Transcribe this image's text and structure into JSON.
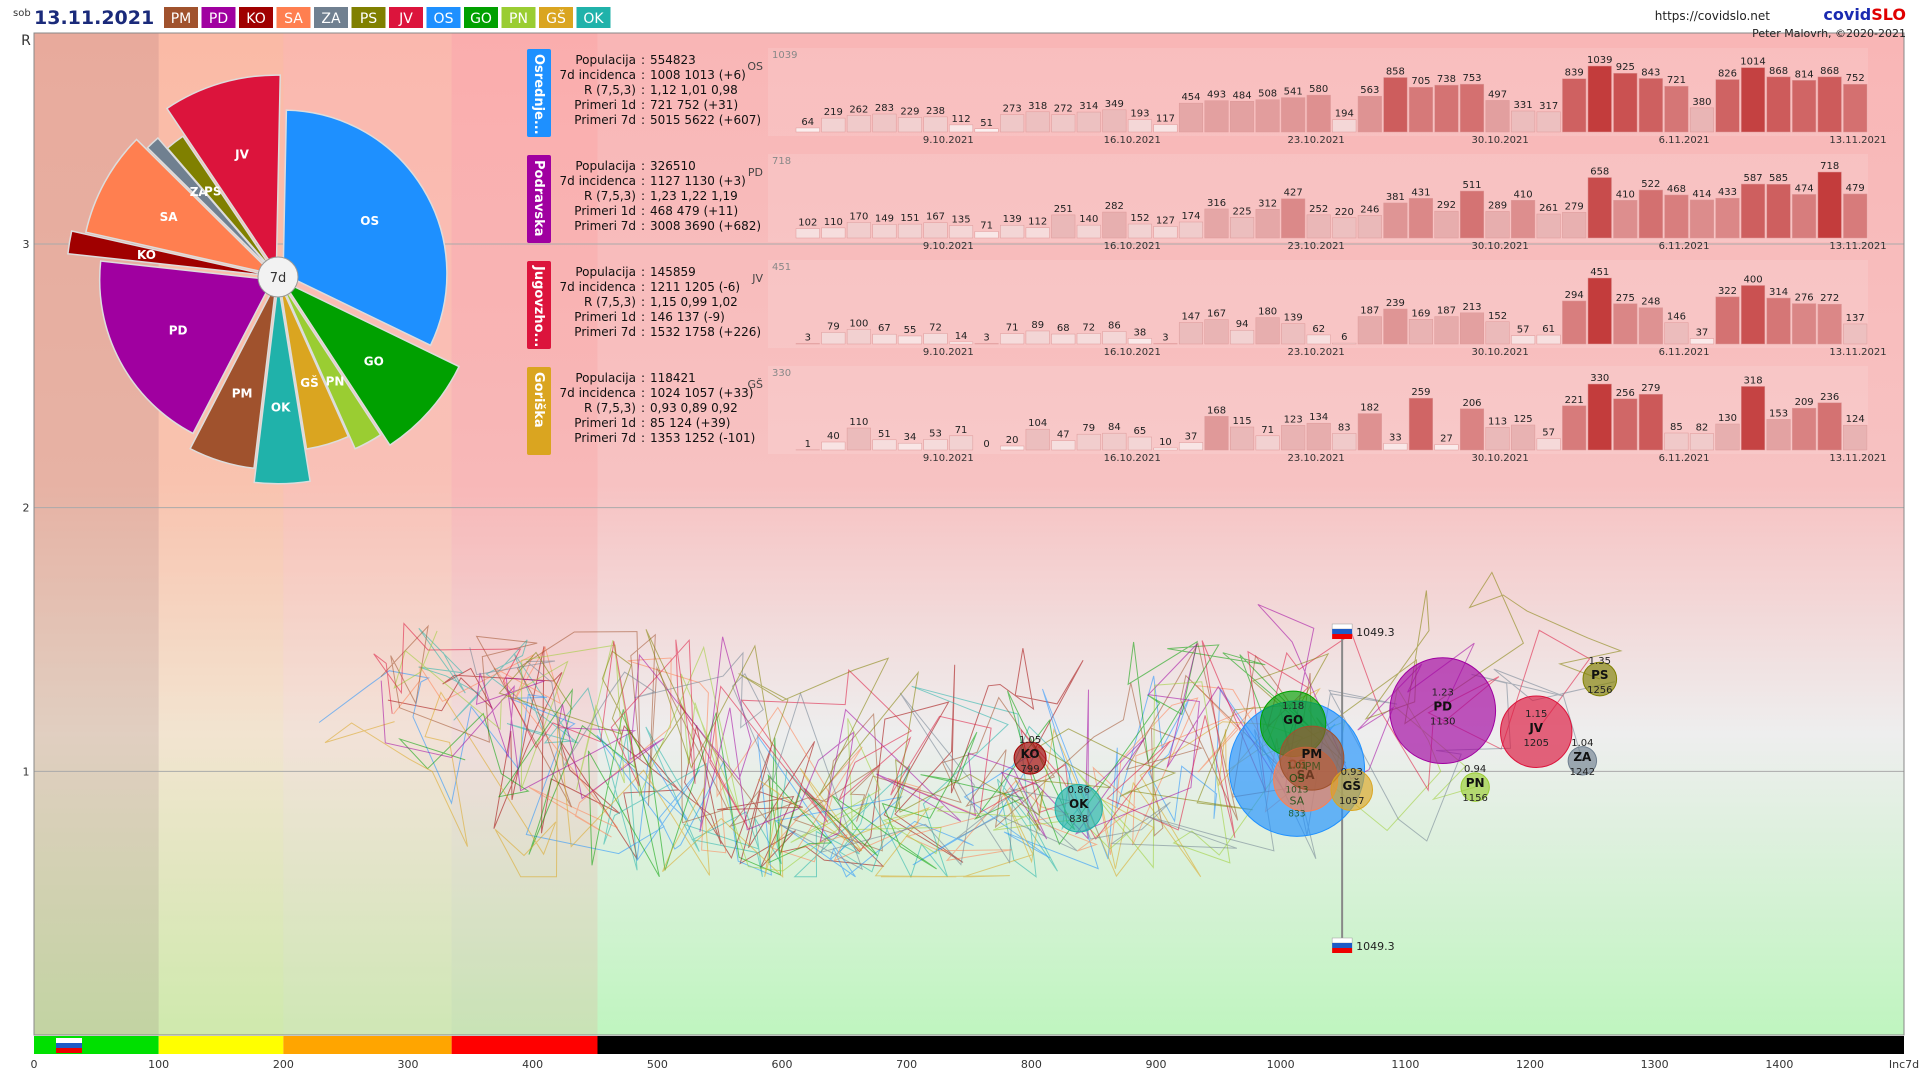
{
  "header": {
    "day": "sob",
    "date": "13.11.2021",
    "url": "https://covidslo.net",
    "brand_prefix": "covid",
    "brand_suffix": "SLO",
    "author": "Peter Malovrh, ©2020-2021",
    "legend": [
      {
        "code": "PM",
        "color": "#a0522d"
      },
      {
        "code": "PD",
        "color": "#a000a0"
      },
      {
        "code": "KO",
        "color": "#a00000"
      },
      {
        "code": "SA",
        "color": "#ff7f50"
      },
      {
        "code": "ZA",
        "color": "#708090"
      },
      {
        "code": "PS",
        "color": "#808000"
      },
      {
        "code": "JV",
        "color": "#dc143c"
      },
      {
        "code": "OS",
        "color": "#1e90ff"
      },
      {
        "code": "GO",
        "color": "#00a000"
      },
      {
        "code": "PN",
        "color": "#9acd32"
      },
      {
        "code": "GŠ",
        "color": "#daa520"
      },
      {
        "code": "OK",
        "color": "#20b2aa"
      }
    ]
  },
  "chart_data": [
    {
      "type": "scatter",
      "description_role": "bubble chart",
      "xlabel": "Inc7d",
      "ylabel": "R",
      "xlim": [
        0,
        1500
      ],
      "ylim": [
        0,
        3.8
      ],
      "x_ticks": [
        "0",
        "100",
        "200",
        "300",
        "400",
        "500",
        "600",
        "700",
        "800",
        "900",
        "1000",
        "1100",
        "1200",
        "1300",
        "1400",
        "Inc7d"
      ],
      "y_ticks": [
        "1",
        "2",
        "3"
      ],
      "national_marker": {
        "label": "1049.3",
        "x": 1049.3
      },
      "risk_bands": [
        {
          "from": 0,
          "to": 100,
          "color": "#00e000"
        },
        {
          "from": 100,
          "to": 200,
          "color": "#ffff00"
        },
        {
          "from": 200,
          "to": 335,
          "color": "#ffa500"
        },
        {
          "from": 335,
          "to": 452,
          "color": "#ff0000"
        },
        {
          "from": 452,
          "to": 1500,
          "color": "#000000"
        }
      ],
      "bubbles": [
        {
          "code": "KO",
          "r": "1.05",
          "inc": "799",
          "x": 799,
          "y": 1.05,
          "pop": 0.25
        },
        {
          "code": "OK",
          "r": "0.86",
          "inc": "838",
          "x": 838,
          "y": 0.86,
          "pop": 0.6
        },
        {
          "code": "OS",
          "r": "",
          "inc": "",
          "x": 1013,
          "y": 1.01,
          "pop": 5.5
        },
        {
          "code": "SA",
          "r": "",
          "inc": "",
          "x": 1020,
          "y": 0.97,
          "pop": 1.15
        },
        {
          "code": "PM",
          "r": "",
          "inc": "",
          "x": 1025,
          "y": 1.05,
          "pop": 1.15
        },
        {
          "code": "GO",
          "r": "1.18",
          "inc": "",
          "x": 1010,
          "y": 1.18,
          "pop": 1.2
        },
        {
          "code": "GŠ",
          "r": "0.93",
          "inc": "1057",
          "x": 1057,
          "y": 0.93,
          "pop": 0.45
        },
        {
          "code": "PD",
          "r": "1.23",
          "inc": "1130",
          "x": 1130,
          "y": 1.23,
          "pop": 3.3
        },
        {
          "code": "PN",
          "r": "0.94",
          "inc": "1156",
          "x": 1156,
          "y": 0.94,
          "pop": 0.19
        },
        {
          "code": "JV",
          "r": "1.15",
          "inc": "1205",
          "x": 1205,
          "y": 1.15,
          "pop": 1.45
        },
        {
          "code": "ZA",
          "r": "1.04",
          "inc": "1242",
          "x": 1242,
          "y": 1.04,
          "pop": 0.19
        },
        {
          "code": "PS",
          "r": "1.35",
          "inc": "1256",
          "x": 1256,
          "y": 1.35,
          "pop": 0.28
        }
      ],
      "bubble_overlap_labels": [
        "1.01",
        "OS",
        "1013",
        "SA",
        "PM",
        "833"
      ]
    },
    {
      "type": "pie",
      "center_label": "7d",
      "slices": [
        {
          "code": "OS",
          "value": 5015
        },
        {
          "code": "GO",
          "value": 1353
        },
        {
          "code": "PN",
          "value": 400
        },
        {
          "code": "GŠ",
          "value": 650
        },
        {
          "code": "OK",
          "value": 700
        },
        {
          "code": "PM",
          "value": 900
        },
        {
          "code": "PD",
          "value": 3008
        },
        {
          "code": "KO",
          "value": 280
        },
        {
          "code": "SA",
          "value": 1400
        },
        {
          "code": "ZA",
          "value": 200
        },
        {
          "code": "PS",
          "value": 300
        },
        {
          "code": "JV",
          "value": 1532
        }
      ]
    },
    {
      "type": "bar",
      "panels": [
        {
          "code": "OS",
          "name": "Osrednje...",
          "color": "#1e90ff",
          "max_label": "1039",
          "stats": [
            [
              "Populacija",
              "554823"
            ],
            [
              "7d incidenca",
              "1008 1013 (+6)"
            ],
            [
              "R (7,5,3)",
              "1,12 1,01 0,98"
            ],
            [
              "Primeri 1d",
              "721 752 (+31)"
            ],
            [
              "Primeri 7d",
              "5015 5622 (+607)"
            ]
          ],
          "values": [
            64,
            219,
            262,
            283,
            229,
            238,
            112,
            51,
            273,
            318,
            272,
            314,
            349,
            193,
            117,
            454,
            493,
            484,
            508,
            541,
            580,
            194,
            563,
            858,
            705,
            738,
            753,
            497,
            331,
            317,
            839,
            1039,
            925,
            843,
            721,
            380,
            826,
            1014,
            868,
            814,
            868,
            752
          ]
        },
        {
          "code": "PD",
          "name": "Podravska",
          "color": "#a000a0",
          "max_label": "718",
          "stats": [
            [
              "Populacija",
              "326510"
            ],
            [
              "7d incidenca",
              "1127 1130 (+3)"
            ],
            [
              "R (7,5,3)",
              "1,23 1,22 1,19"
            ],
            [
              "Primeri 1d",
              "468 479 (+11)"
            ],
            [
              "Primeri 7d",
              "3008 3690 (+682)"
            ]
          ],
          "values": [
            102,
            110,
            170,
            149,
            151,
            167,
            135,
            71,
            139,
            112,
            251,
            140,
            282,
            152,
            127,
            174,
            316,
            225,
            312,
            427,
            252,
            220,
            246,
            381,
            431,
            292,
            511,
            289,
            410,
            261,
            279,
            658,
            410,
            522,
            468,
            414,
            433,
            587,
            585,
            474,
            718,
            479
          ]
        },
        {
          "code": "JV",
          "name": "Jugovzho...",
          "color": "#dc143c",
          "max_label": "451",
          "stats": [
            [
              "Populacija",
              "145859"
            ],
            [
              "7d incidenca",
              "1211 1205 (-6)"
            ],
            [
              "R (7,5,3)",
              "1,15 0,99 1,02"
            ],
            [
              "Primeri 1d",
              "146 137 (-9)"
            ],
            [
              "Primeri 7d",
              "1532 1758 (+226)"
            ]
          ],
          "values": [
            3,
            79,
            100,
            67,
            55,
            72,
            14,
            3,
            71,
            89,
            68,
            72,
            86,
            38,
            3,
            147,
            167,
            94,
            180,
            139,
            62,
            6,
            187,
            239,
            169,
            187,
            213,
            152,
            57,
            61,
            294,
            451,
            275,
            248,
            146,
            37,
            322,
            400,
            314,
            276,
            272,
            137
          ]
        },
        {
          "code": "GŠ",
          "name": "Goriška",
          "color": "#daa520",
          "max_label": "330",
          "stats": [
            [
              "Populacija",
              "118421"
            ],
            [
              "7d incidenca",
              "1024 1057 (+33)"
            ],
            [
              "R (7,5,3)",
              "0,93 0,89 0,92"
            ],
            [
              "Primeri 1d",
              "85 124 (+39)"
            ],
            [
              "Primeri 7d",
              "1353 1252 (-101)"
            ]
          ],
          "values": [
            1,
            40,
            110,
            51,
            34,
            53,
            71,
            0,
            20,
            104,
            47,
            79,
            84,
            65,
            10,
            37,
            168,
            115,
            71,
            123,
            134,
            83,
            182,
            33,
            259,
            27,
            206,
            113,
            125,
            57,
            221,
            330,
            256,
            279,
            85,
            82,
            130,
            318,
            153,
            209,
            236,
            124
          ]
        }
      ],
      "date_ticks": [
        "9.10.2021",
        "16.10.2021",
        "23.10.2021",
        "30.10.2021",
        "6.11.2021",
        "13.11.2021"
      ]
    }
  ]
}
